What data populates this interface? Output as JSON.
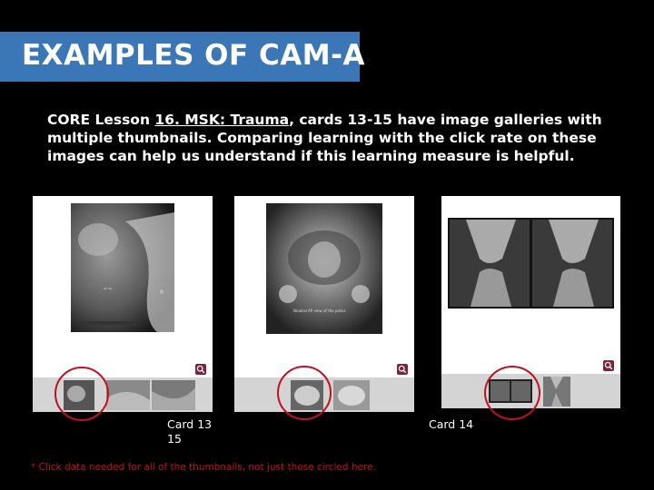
{
  "slide": {
    "title": "EXAMPLES OF CAM-A",
    "body_prefix": "CORE Lesson ",
    "lesson_link": "16. MSK: Trauma",
    "body_suffix": ", cards 13-15 have image galleries with multiple thumbnails.  Comparing learning with the click rate on these images can help us understand if this learning measure is helpful.",
    "footnote": "* Click data needed  for all of the thumbnails, not just those circled here."
  },
  "cards": [
    {
      "label": "Card 13\n15",
      "image_caption": "AP hip",
      "icons": [
        "zoom-icon"
      ]
    },
    {
      "label": "",
      "image_caption": "Neutral AP view of the pelvis",
      "icons": [
        "zoom-icon"
      ]
    },
    {
      "label": "Card 14",
      "image_caption": "",
      "icons": [
        "zoom-icon"
      ]
    }
  ],
  "colors": {
    "title_bar": "#3b76b7",
    "circle": "#c0111f",
    "footnote": "#c0111f",
    "zoom_button": "#7a2438",
    "background": "#000000"
  }
}
